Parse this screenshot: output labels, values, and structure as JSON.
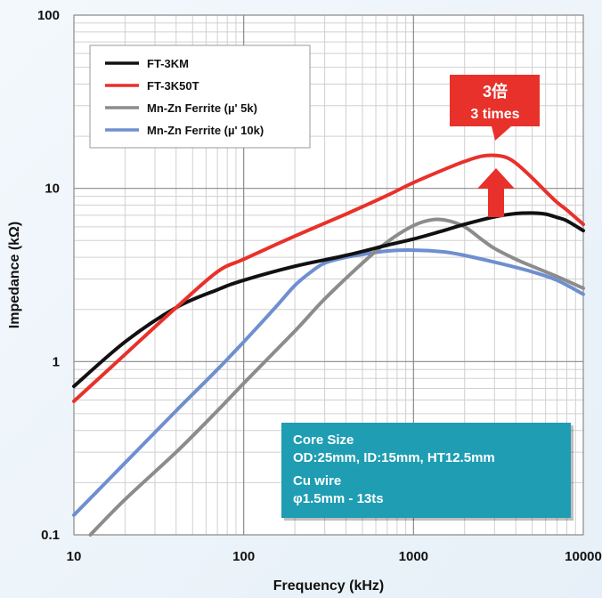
{
  "chart_data": {
    "type": "line",
    "title": "",
    "xlabel": "Frequency (kHz)",
    "ylabel": "Impedance (kΩ)",
    "xscale": "log",
    "yscale": "log",
    "xlim": [
      10,
      10000
    ],
    "ylim": [
      0.1,
      100
    ],
    "xticks": [
      "10",
      "100",
      "1000",
      "10000"
    ],
    "yticks": [
      "0.1",
      "1",
      "10",
      "100"
    ],
    "grid": true,
    "legend_position": "top-left",
    "series": [
      {
        "name": "FT-3KM",
        "color": "#111111",
        "x": [
          10,
          20,
          40,
          70,
          100,
          200,
          400,
          700,
          1000,
          1500,
          2000,
          3000,
          4000,
          5000,
          6000,
          7000,
          8000,
          10000
        ],
        "y": [
          0.72,
          1.3,
          2.05,
          2.6,
          2.95,
          3.55,
          4.1,
          4.7,
          5.1,
          5.7,
          6.2,
          6.85,
          7.15,
          7.2,
          7.1,
          6.8,
          6.5,
          5.7
        ]
      },
      {
        "name": "FT-3K50T",
        "color": "#e8312a",
        "x": [
          10,
          20,
          40,
          70,
          100,
          200,
          400,
          700,
          1000,
          1500,
          2000,
          2500,
          3000,
          3500,
          4000,
          5000,
          6000,
          7000,
          8000,
          10000
        ],
        "y": [
          0.59,
          1.1,
          2.05,
          3.3,
          3.9,
          5.3,
          7.1,
          9.1,
          10.8,
          12.8,
          14.3,
          15.3,
          15.5,
          15.1,
          14.0,
          11.5,
          9.6,
          8.3,
          7.5,
          6.2
        ]
      },
      {
        "name": "Mn-Zn Ferrite (µ' 5k)",
        "color": "#8c8c8c",
        "x": [
          12.5,
          20,
          40,
          70,
          100,
          200,
          300,
          500,
          700,
          1000,
          1300,
          1600,
          2000,
          2500,
          3000,
          4000,
          5000,
          7000,
          10000
        ],
        "y": [
          0.1,
          0.16,
          0.3,
          0.52,
          0.75,
          1.5,
          2.3,
          3.7,
          4.9,
          6.1,
          6.6,
          6.5,
          6.0,
          5.1,
          4.5,
          3.9,
          3.55,
          3.1,
          2.65
        ]
      },
      {
        "name": "Mn-Zn Ferrite (µ' 10k)",
        "color": "#6e8fd0",
        "x": [
          10,
          20,
          40,
          70,
          100,
          150,
          200,
          250,
          300,
          400,
          500,
          700,
          1000,
          1500,
          2000,
          3000,
          5000,
          7000,
          10000
        ],
        "y": [
          0.13,
          0.26,
          0.52,
          0.9,
          1.3,
          2.0,
          2.75,
          3.3,
          3.7,
          4.0,
          4.15,
          4.35,
          4.4,
          4.3,
          4.1,
          3.75,
          3.3,
          2.95,
          2.45
        ]
      }
    ],
    "callout": {
      "line1": "3倍",
      "line2": "3 times",
      "color": "#e8312a"
    },
    "info_box": {
      "lines": [
        "Core Size",
        "OD:25mm, ID:15mm, HT12.5mm",
        "Cu wire",
        "φ1.5mm - 13ts"
      ],
      "color": "#1f9db3"
    }
  }
}
